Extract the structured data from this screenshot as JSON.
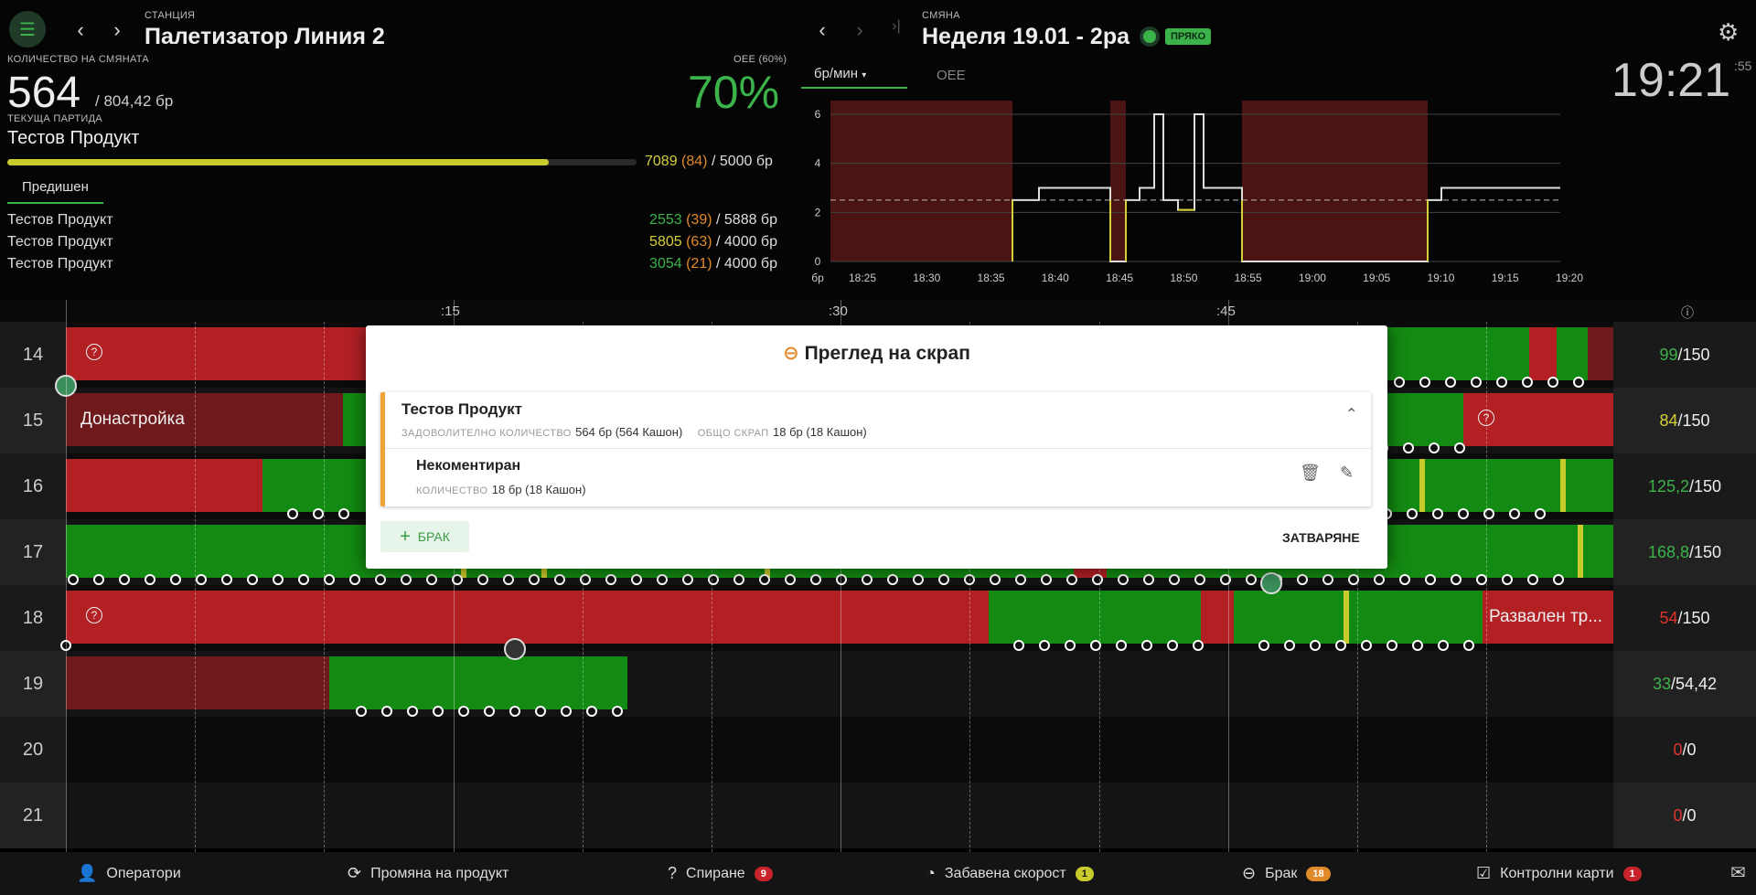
{
  "header": {
    "station_label": "СТАНЦИЯ",
    "station_name": "Палетизатор Линия 2",
    "qty_label": "КОЛИЧЕСТВО НА СМЯНАТА",
    "qty_value": "564",
    "qty_target": "/ 804,42 бр",
    "oee_label": "OEE (60%)",
    "oee_value": "70%",
    "batch_label": "ТЕКУЩА ПАРТИДА",
    "batch_name": "Тестов Продукт",
    "batch_progress": 0.86,
    "batch_count": "7089",
    "batch_count_paren": "(84)",
    "batch_target": "/ 5000 бр",
    "prev_tab": "Предишен",
    "previous": [
      {
        "name": "Тестов Продукт",
        "count": "2553",
        "paren": "(39)",
        "target": "/ 5888 бр",
        "color": "#3cb34a"
      },
      {
        "name": "Тестов Продукт",
        "count": "5805",
        "paren": "(63)",
        "target": "/ 4000 бр",
        "color": "#d7cf38"
      },
      {
        "name": "Тестов Продукт",
        "count": "3054",
        "paren": "(21)",
        "target": "/ 4000 бр",
        "color": "#3cb34a"
      }
    ]
  },
  "shift": {
    "label": "СМЯНА",
    "name": "Неделя 19.01 - 2ра",
    "status": "ПРЯКО",
    "clock": "19:21",
    "clock_sec": ":55"
  },
  "chart_tabs": {
    "rate": "бр/мин",
    "oee": "OEE"
  },
  "chart_data": {
    "type": "line",
    "x": [
      "18:25",
      "18:30",
      "18:35",
      "18:40",
      "18:45",
      "18:50",
      "18:55",
      "19:00",
      "19:05",
      "19:10",
      "19:15",
      "19:20"
    ],
    "ylim": [
      0,
      6
    ],
    "yticks": [
      "0",
      "2",
      "4",
      "6"
    ],
    "ylabel": "бр",
    "target": 2.5
  },
  "timeline": {
    "ticks": [
      ":15",
      ":30",
      ":45"
    ],
    "rows": [
      {
        "hour": "14",
        "value": "99",
        "target": "/150",
        "color": "#3cb34a"
      },
      {
        "hour": "15",
        "value": "84",
        "target": "/150",
        "color": "#d7cf38",
        "label": "Донастройка"
      },
      {
        "hour": "16",
        "value": "125,2",
        "target": "/150",
        "color": "#3cb34a"
      },
      {
        "hour": "17",
        "value": "168,8",
        "target": "/150",
        "color": "#3cb34a"
      },
      {
        "hour": "18",
        "value": "54",
        "target": "/150",
        "color": "#e0332e",
        "label": "Развален тр..."
      },
      {
        "hour": "19",
        "value": "33",
        "target": "/54,42",
        "color": "#3cb34a"
      },
      {
        "hour": "20",
        "value": "0",
        "target": "/0",
        "color": "#e0332e"
      },
      {
        "hour": "21",
        "value": "0",
        "target": "/0",
        "color": "#e0332e"
      }
    ]
  },
  "modal": {
    "title": "Преглед на скрап",
    "product": "Тестов Продукт",
    "good_label": "ЗАДОВОЛИТЕЛНО КОЛИЧЕСТВО",
    "good_value": "564 бр  (564 Кашон)",
    "scrap_label": "ОБЩО СКРАП",
    "scrap_value": "18 бр  (18 Кашон)",
    "item_title": "Некоментиран",
    "item_label": "КОЛИЧЕСТВО",
    "item_value": "18 бр  (18 Кашон)",
    "add_label": "БРАК",
    "close_label": "ЗАТВАРЯНЕ"
  },
  "bottom_bar": [
    {
      "label": "Оператори",
      "icon": "operator-icon"
    },
    {
      "label": "Промяна на продукт",
      "icon": "refresh-icon"
    },
    {
      "label": "Спиране",
      "icon": "question-icon",
      "count": "9",
      "color": "#c8232a"
    },
    {
      "label": "Забавена скорост",
      "icon": "speed-icon",
      "count": "1",
      "color": "#c9cb2c"
    },
    {
      "label": "Брак",
      "icon": "minus-circle-icon",
      "count": "18",
      "color": "#e08a2b"
    },
    {
      "label": "Контролни карти",
      "icon": "checklist-icon",
      "count": "1",
      "color": "#c8232a"
    }
  ]
}
